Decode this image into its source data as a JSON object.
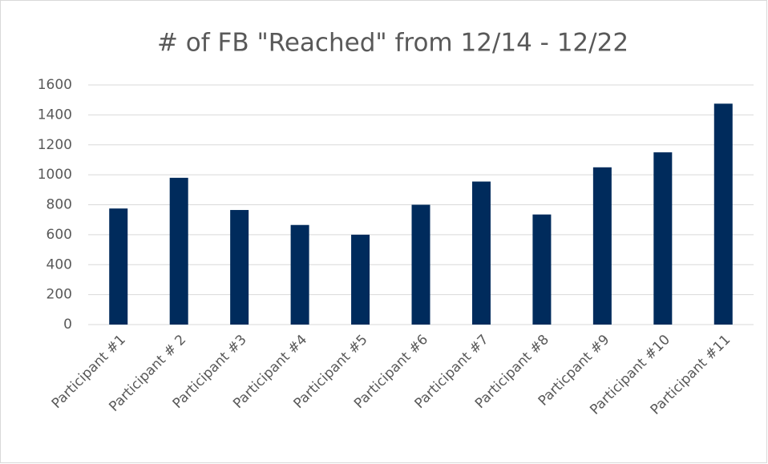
{
  "chart_data": {
    "type": "bar",
    "title": "# of FB \"Reached\" from 12/14 - 12/22",
    "categories": [
      "Participant #1",
      "Participant # 2",
      "Participant #3",
      "Participant #4",
      "Participant #5",
      "Participant #6",
      "Participant #7",
      "Participant #8",
      "Particpant #9",
      "Participant #10",
      "Participant #11"
    ],
    "values": [
      775,
      980,
      765,
      665,
      600,
      800,
      955,
      735,
      1050,
      1150,
      1475
    ],
    "color": "#002b5c",
    "ylim": [
      0,
      1600
    ],
    "yticks": [
      0,
      200,
      400,
      600,
      800,
      1000,
      1200,
      1400,
      1600
    ],
    "grid": true
  }
}
